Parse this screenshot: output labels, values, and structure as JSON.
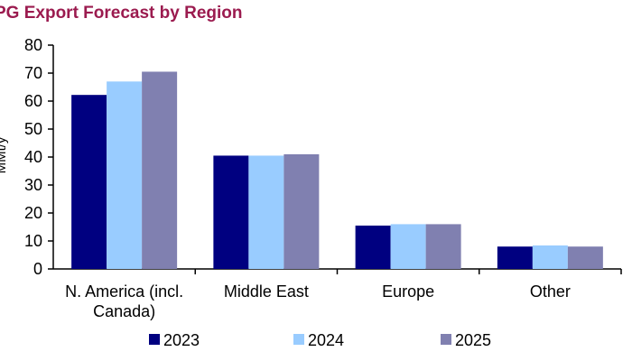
{
  "chart_data": {
    "type": "bar",
    "title": "PG Export Forecast by Region",
    "ylabel": "MMt/y",
    "xlabel": "",
    "ylim": [
      0,
      80
    ],
    "yticks": [
      0,
      10,
      20,
      30,
      40,
      50,
      60,
      70,
      80
    ],
    "grid": false,
    "legend_position": "bottom",
    "categories": [
      [
        "N. America (incl.",
        "Canada)"
      ],
      [
        "Middle East"
      ],
      [
        "Europe"
      ],
      [
        "Other"
      ]
    ],
    "series": [
      {
        "name": "2023",
        "color": "#000080",
        "values": [
          62.2,
          40.5,
          15.5,
          8.0
        ]
      },
      {
        "name": "2024",
        "color": "#99ccff",
        "values": [
          67.0,
          40.5,
          16.0,
          8.4
        ]
      },
      {
        "name": "2025",
        "color": "#8080b0",
        "values": [
          70.5,
          41.0,
          16.0,
          8.0
        ]
      }
    ]
  }
}
